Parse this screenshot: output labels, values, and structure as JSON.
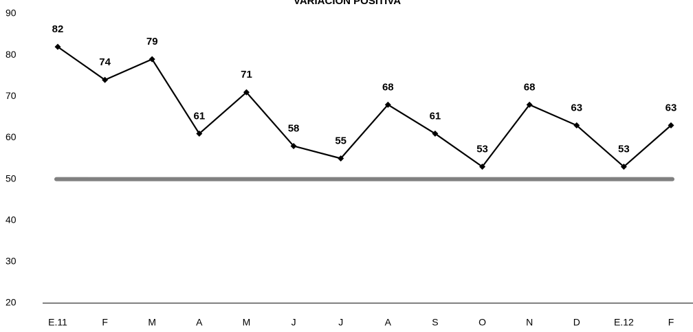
{
  "chart_data": {
    "type": "line",
    "title": "VARIACIÓN POSITIVA",
    "categories": [
      "E.11",
      "F",
      "M",
      "A",
      "M",
      "J",
      "J",
      "A",
      "S",
      "O",
      "N",
      "D",
      "E.12",
      "F"
    ],
    "series": [
      {
        "color": "#000000",
        "values": [
          82,
          74,
          79,
          61,
          71,
          58,
          55,
          68,
          61,
          53,
          68,
          63,
          53,
          63
        ]
      }
    ],
    "reference_line": {
      "value": 50,
      "color": "#808080"
    },
    "ylim": [
      20,
      90
    ],
    "yticks": [
      20,
      30,
      40,
      50,
      60,
      70,
      80,
      90
    ]
  }
}
